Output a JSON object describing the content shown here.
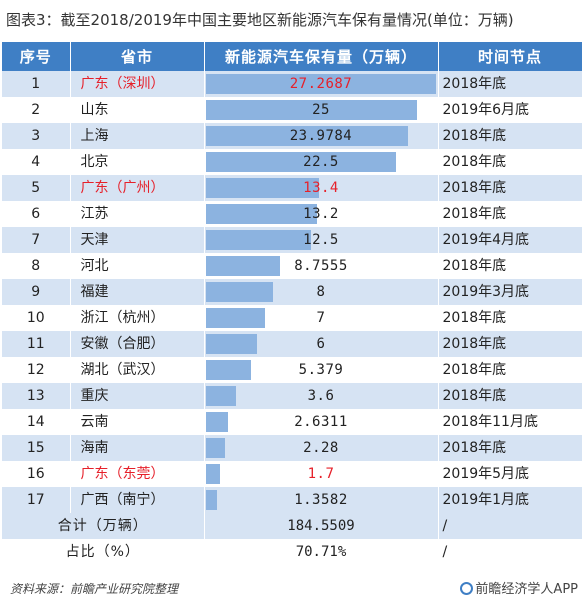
{
  "title": "图表3：截至2018/2019年中国主要地区新能源汽车保有量情况(单位：万辆)",
  "headers": {
    "seq": "序号",
    "province": "省市",
    "value": "新能源汽车保有量（万辆）",
    "time": "时间节点"
  },
  "max_value": 27.2687,
  "rows": [
    {
      "seq": "1",
      "province": "广东（深圳）",
      "value": "27.2687",
      "num": 27.2687,
      "time": "2018年底",
      "highlight": true
    },
    {
      "seq": "2",
      "province": "山东",
      "value": "25",
      "num": 25,
      "time": "2019年6月底",
      "highlight": false
    },
    {
      "seq": "3",
      "province": "上海",
      "value": "23.9784",
      "num": 23.9784,
      "time": "2018年底",
      "highlight": false
    },
    {
      "seq": "4",
      "province": "北京",
      "value": "22.5",
      "num": 22.5,
      "time": "2018年底",
      "highlight": false
    },
    {
      "seq": "5",
      "province": "广东（广州）",
      "value": "13.4",
      "num": 13.4,
      "time": "2018年底",
      "highlight": true
    },
    {
      "seq": "6",
      "province": "江苏",
      "value": "13.2",
      "num": 13.2,
      "time": "2018年底",
      "highlight": false
    },
    {
      "seq": "7",
      "province": "天津",
      "value": "12.5",
      "num": 12.5,
      "time": "2019年4月底",
      "highlight": false
    },
    {
      "seq": "8",
      "province": "河北",
      "value": "8.7555",
      "num": 8.7555,
      "time": "2018年底",
      "highlight": false
    },
    {
      "seq": "9",
      "province": "福建",
      "value": "8",
      "num": 8,
      "time": "2019年3月底",
      "highlight": false
    },
    {
      "seq": "10",
      "province": "浙江（杭州）",
      "value": "7",
      "num": 7,
      "time": "2018年底",
      "highlight": false
    },
    {
      "seq": "11",
      "province": "安徽（合肥）",
      "value": "6",
      "num": 6,
      "time": "2018年底",
      "highlight": false
    },
    {
      "seq": "12",
      "province": "湖北（武汉）",
      "value": "5.379",
      "num": 5.379,
      "time": "2018年底",
      "highlight": false
    },
    {
      "seq": "13",
      "province": "重庆",
      "value": "3.6",
      "num": 3.6,
      "time": "2018年底",
      "highlight": false
    },
    {
      "seq": "14",
      "province": "云南",
      "value": "2.6311",
      "num": 2.6311,
      "time": "2018年11月底",
      "highlight": false
    },
    {
      "seq": "15",
      "province": "海南",
      "value": "2.28",
      "num": 2.28,
      "time": "2018年底",
      "highlight": false
    },
    {
      "seq": "16",
      "province": "广东（东莞）",
      "value": "1.7",
      "num": 1.7,
      "time": "2019年5月底",
      "highlight": true
    },
    {
      "seq": "17",
      "province": "广西（南宁）",
      "value": "1.3582",
      "num": 1.3582,
      "time": "2019年1月底",
      "highlight": false
    }
  ],
  "total": {
    "label": "合计（万辆）",
    "value": "184.5509",
    "time": "/"
  },
  "share": {
    "label": "占比（%）",
    "value": "70.71%",
    "time": "/"
  },
  "footer": {
    "source": "资料来源：前瞻产业研究院整理",
    "brand": "前瞻经济学人APP"
  },
  "colors": {
    "header_bg": "#3f7fc5",
    "stripe": "#d6e3f3",
    "bar": "#8cb3e0",
    "highlight_text": "#e6202a"
  }
}
